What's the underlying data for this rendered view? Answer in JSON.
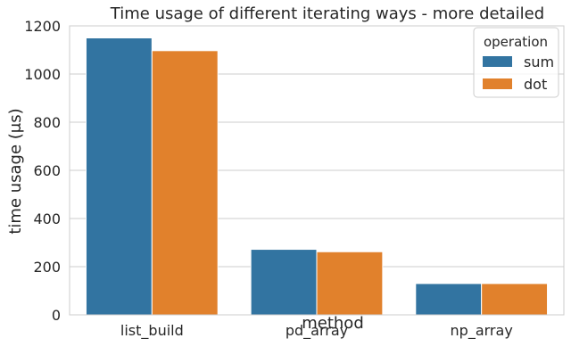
{
  "chart_data": {
    "type": "bar",
    "title": "Time usage of different iterating ways - more detailed",
    "xlabel": "method",
    "ylabel": "time usage (μs)",
    "categories": [
      "list_build",
      "pd_array",
      "np_array"
    ],
    "series": [
      {
        "name": "sum",
        "values": [
          1150,
          272,
          130
        ],
        "color": "#3274a1"
      },
      {
        "name": "dot",
        "values": [
          1097,
          262,
          130
        ],
        "color": "#e1812c"
      }
    ],
    "ylim": [
      0,
      1200
    ],
    "yticks": [
      0,
      200,
      400,
      600,
      800,
      1000,
      1200
    ],
    "grid": "horizontal",
    "legend": {
      "title": "operation",
      "position": "top-right"
    }
  }
}
